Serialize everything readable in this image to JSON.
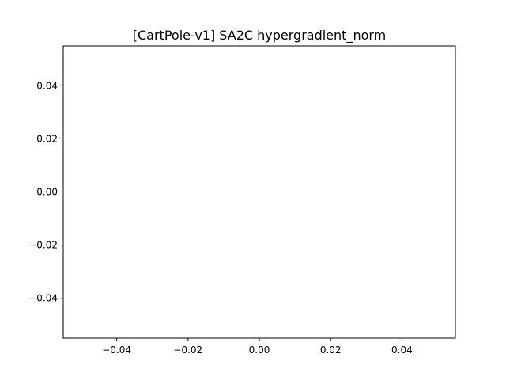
{
  "chart_data": {
    "type": "line",
    "title": "[CartPole-v1] SA2C hypergradient_norm",
    "xlabel": "",
    "ylabel": "",
    "xlim": [
      -0.055,
      0.055
    ],
    "ylim": [
      -0.055,
      0.055
    ],
    "xticks": [
      -0.04,
      -0.02,
      0.0,
      0.02,
      0.04
    ],
    "yticks": [
      -0.04,
      -0.02,
      0.0,
      0.02,
      0.04
    ],
    "xtick_labels": [
      "−0.04",
      "−0.02",
      "0.00",
      "0.02",
      "0.04"
    ],
    "ytick_labels": [
      "−0.04",
      "−0.02",
      "0.00",
      "0.02",
      "0.04"
    ],
    "series": [],
    "grid": false,
    "legend": "none"
  }
}
